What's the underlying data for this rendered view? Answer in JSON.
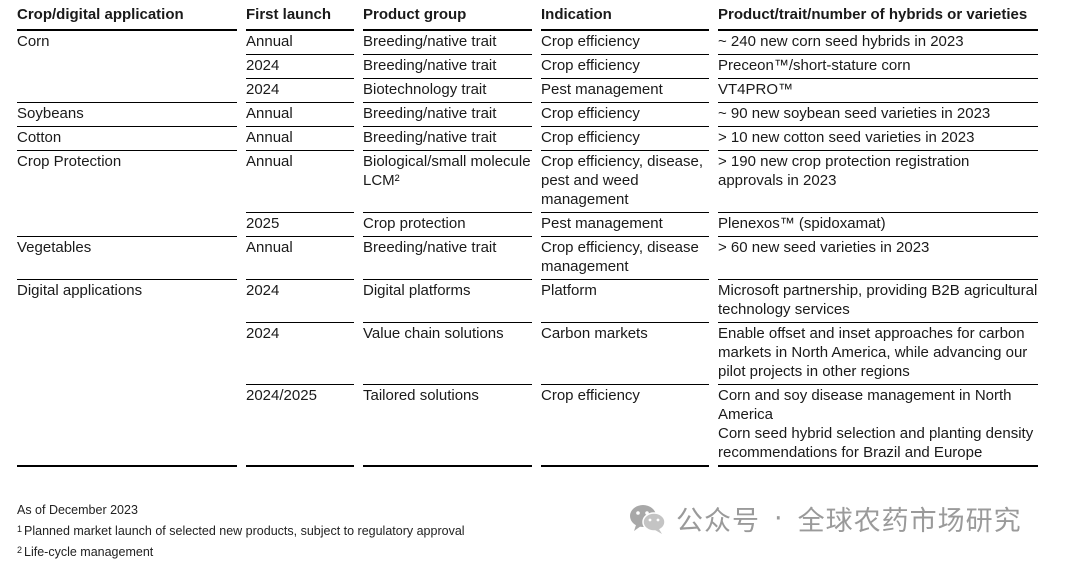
{
  "table": {
    "headers": {
      "crop": "Crop/digital application",
      "first_launch": "First launch",
      "product_group": "Product group",
      "indication": "Indication",
      "product": "Product/trait/number of hybrids or varieties"
    },
    "groups": [
      {
        "crop": "Corn",
        "rows": [
          {
            "launch": "Annual",
            "group": "Breeding/native trait",
            "indication": "Crop efficiency",
            "product": "~ 240 new corn seed hybrids in 2023"
          },
          {
            "launch": "2024",
            "group": "Breeding/native trait",
            "indication": "Crop efficiency",
            "product": "Preceon™/short-stature corn"
          },
          {
            "launch": "2024",
            "group": "Biotechnology trait",
            "indication": "Pest management",
            "product": "VT4PRO™"
          }
        ]
      },
      {
        "crop": "Soybeans",
        "rows": [
          {
            "launch": "Annual",
            "group": "Breeding/native trait",
            "indication": "Crop efficiency",
            "product": "~ 90 new soybean seed varieties in 2023"
          }
        ]
      },
      {
        "crop": "Cotton",
        "rows": [
          {
            "launch": "Annual",
            "group": "Breeding/native trait",
            "indication": "Crop efficiency",
            "product": "> 10 new cotton seed varieties in 2023"
          }
        ]
      },
      {
        "crop": "Crop Protection",
        "rows": [
          {
            "launch": "Annual",
            "group": "Biological/small molecule LCM²",
            "indication": "Crop efficiency, disease, pest and weed management",
            "product": "> 190 new crop protection registration approvals in 2023"
          },
          {
            "launch": "2025",
            "group": "Crop protection",
            "indication": "Pest management",
            "product": "Plenexos™ (spidoxamat)"
          }
        ]
      },
      {
        "crop": "Vegetables",
        "rows": [
          {
            "launch": "Annual",
            "group": "Breeding/native trait",
            "indication": "Crop efficiency, disease management",
            "product": "> 60 new seed varieties in 2023"
          }
        ]
      },
      {
        "crop": "Digital applications",
        "rows": [
          {
            "launch": "2024",
            "group": "Digital platforms",
            "indication": "Platform",
            "product": "Microsoft partnership, providing B2B agricultural technology services"
          },
          {
            "launch": "2024",
            "group": "Value chain solutions",
            "indication": "Carbon markets",
            "product": "Enable offset and inset approaches for carbon markets in North America, while advancing our pilot projects in other regions"
          },
          {
            "launch": "2024/2025",
            "group": "Tailored solutions",
            "indication": "Crop efficiency",
            "product": "Corn and soy disease management in North America\nCorn seed hybrid selection and planting density recommendations for Brazil and Europe"
          }
        ]
      }
    ]
  },
  "footer": {
    "as_of": "As of December 2023",
    "note1_mark": "1",
    "note1": "Planned market launch of selected new products, subject to regulatory approval",
    "note2_mark": "2",
    "note2": "Life-cycle management"
  },
  "watermark": {
    "icon": "wechat-icon",
    "left": "公众号",
    "separator": "·",
    "right": "全球农药市场研究"
  }
}
